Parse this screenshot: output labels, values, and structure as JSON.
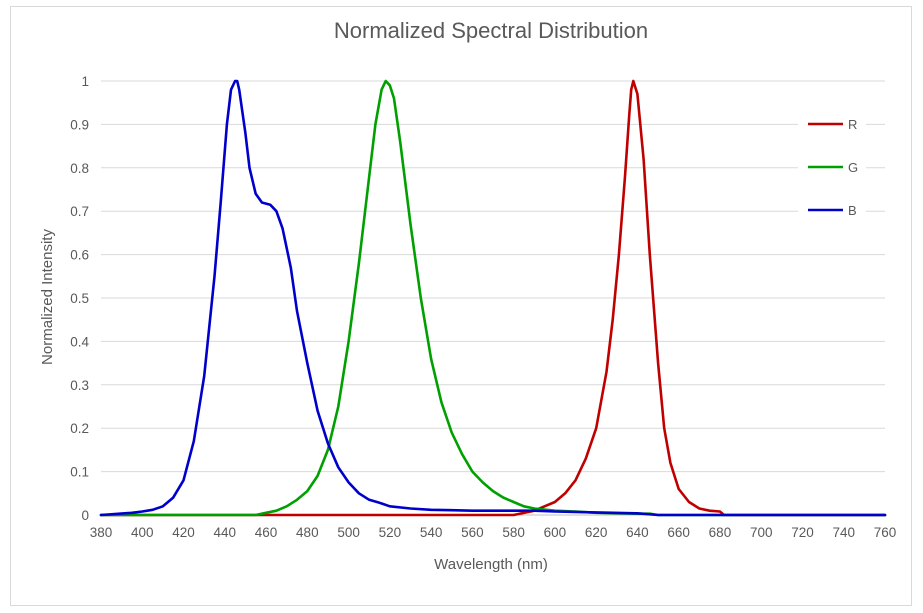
{
  "chart_data": {
    "type": "line",
    "title": "Normalized Spectral Distribution",
    "xlabel": "Wavelength (nm)",
    "ylabel": "Normalized Intensity",
    "xlim": [
      380,
      760
    ],
    "ylim": [
      0,
      1
    ],
    "xticks": [
      380,
      400,
      420,
      440,
      460,
      480,
      500,
      520,
      540,
      560,
      580,
      600,
      620,
      640,
      660,
      680,
      700,
      720,
      740,
      760
    ],
    "yticks": [
      0,
      0.1,
      0.2,
      0.3,
      0.4,
      0.5,
      0.6,
      0.7,
      0.8,
      0.9,
      1
    ],
    "ytick_labels": [
      "0",
      "0.1",
      "0.2",
      "0.3",
      "0.4",
      "0.5",
      "0.6",
      "0.7",
      "0.8",
      "0.9",
      "1"
    ],
    "grid": true,
    "legend_position": "right",
    "series": [
      {
        "name": "R",
        "color": "#c00000",
        "x": [
          380,
          580,
          590,
          595,
          600,
          605,
          610,
          615,
          620,
          625,
          628,
          631,
          634,
          636,
          637,
          638,
          640,
          643,
          646,
          650,
          653,
          656,
          660,
          665,
          670,
          675,
          680,
          682,
          760
        ],
        "y": [
          0,
          0,
          0.01,
          0.02,
          0.03,
          0.05,
          0.08,
          0.13,
          0.2,
          0.33,
          0.45,
          0.6,
          0.78,
          0.92,
          0.98,
          1.0,
          0.97,
          0.82,
          0.6,
          0.35,
          0.2,
          0.12,
          0.06,
          0.03,
          0.015,
          0.01,
          0.008,
          0,
          0
        ]
      },
      {
        "name": "G",
        "color": "#00a000",
        "x": [
          380,
          455,
          460,
          465,
          470,
          475,
          480,
          485,
          490,
          495,
          500,
          505,
          510,
          513,
          516,
          518,
          520,
          522,
          525,
          530,
          535,
          540,
          545,
          550,
          555,
          560,
          565,
          570,
          575,
          580,
          585,
          590,
          600,
          610,
          620,
          640,
          646,
          650,
          760
        ],
        "y": [
          0,
          0,
          0.005,
          0.01,
          0.02,
          0.035,
          0.055,
          0.09,
          0.15,
          0.25,
          0.4,
          0.58,
          0.78,
          0.9,
          0.98,
          1.0,
          0.99,
          0.96,
          0.86,
          0.67,
          0.5,
          0.36,
          0.26,
          0.19,
          0.14,
          0.1,
          0.075,
          0.055,
          0.04,
          0.03,
          0.02,
          0.015,
          0.01,
          0.008,
          0.005,
          0.003,
          0.003,
          0,
          0
        ]
      },
      {
        "name": "B",
        "color": "#0000cc",
        "x": [
          380,
          395,
          400,
          405,
          410,
          415,
          420,
          425,
          430,
          435,
          438,
          441,
          443,
          445,
          446,
          447,
          450,
          452,
          455,
          458,
          462,
          465,
          468,
          472,
          475,
          480,
          485,
          490,
          495,
          500,
          505,
          510,
          515,
          520,
          530,
          540,
          550,
          560,
          570,
          580,
          590,
          600,
          620,
          640,
          650,
          760
        ],
        "y": [
          0,
          0.005,
          0.008,
          0.012,
          0.02,
          0.04,
          0.08,
          0.17,
          0.32,
          0.55,
          0.72,
          0.9,
          0.98,
          1.0,
          1.0,
          0.98,
          0.88,
          0.8,
          0.74,
          0.72,
          0.715,
          0.7,
          0.66,
          0.57,
          0.47,
          0.35,
          0.24,
          0.165,
          0.11,
          0.075,
          0.05,
          0.035,
          0.028,
          0.02,
          0.015,
          0.012,
          0.011,
          0.01,
          0.01,
          0.01,
          0.01,
          0.008,
          0.006,
          0.004,
          0,
          0
        ]
      }
    ]
  }
}
